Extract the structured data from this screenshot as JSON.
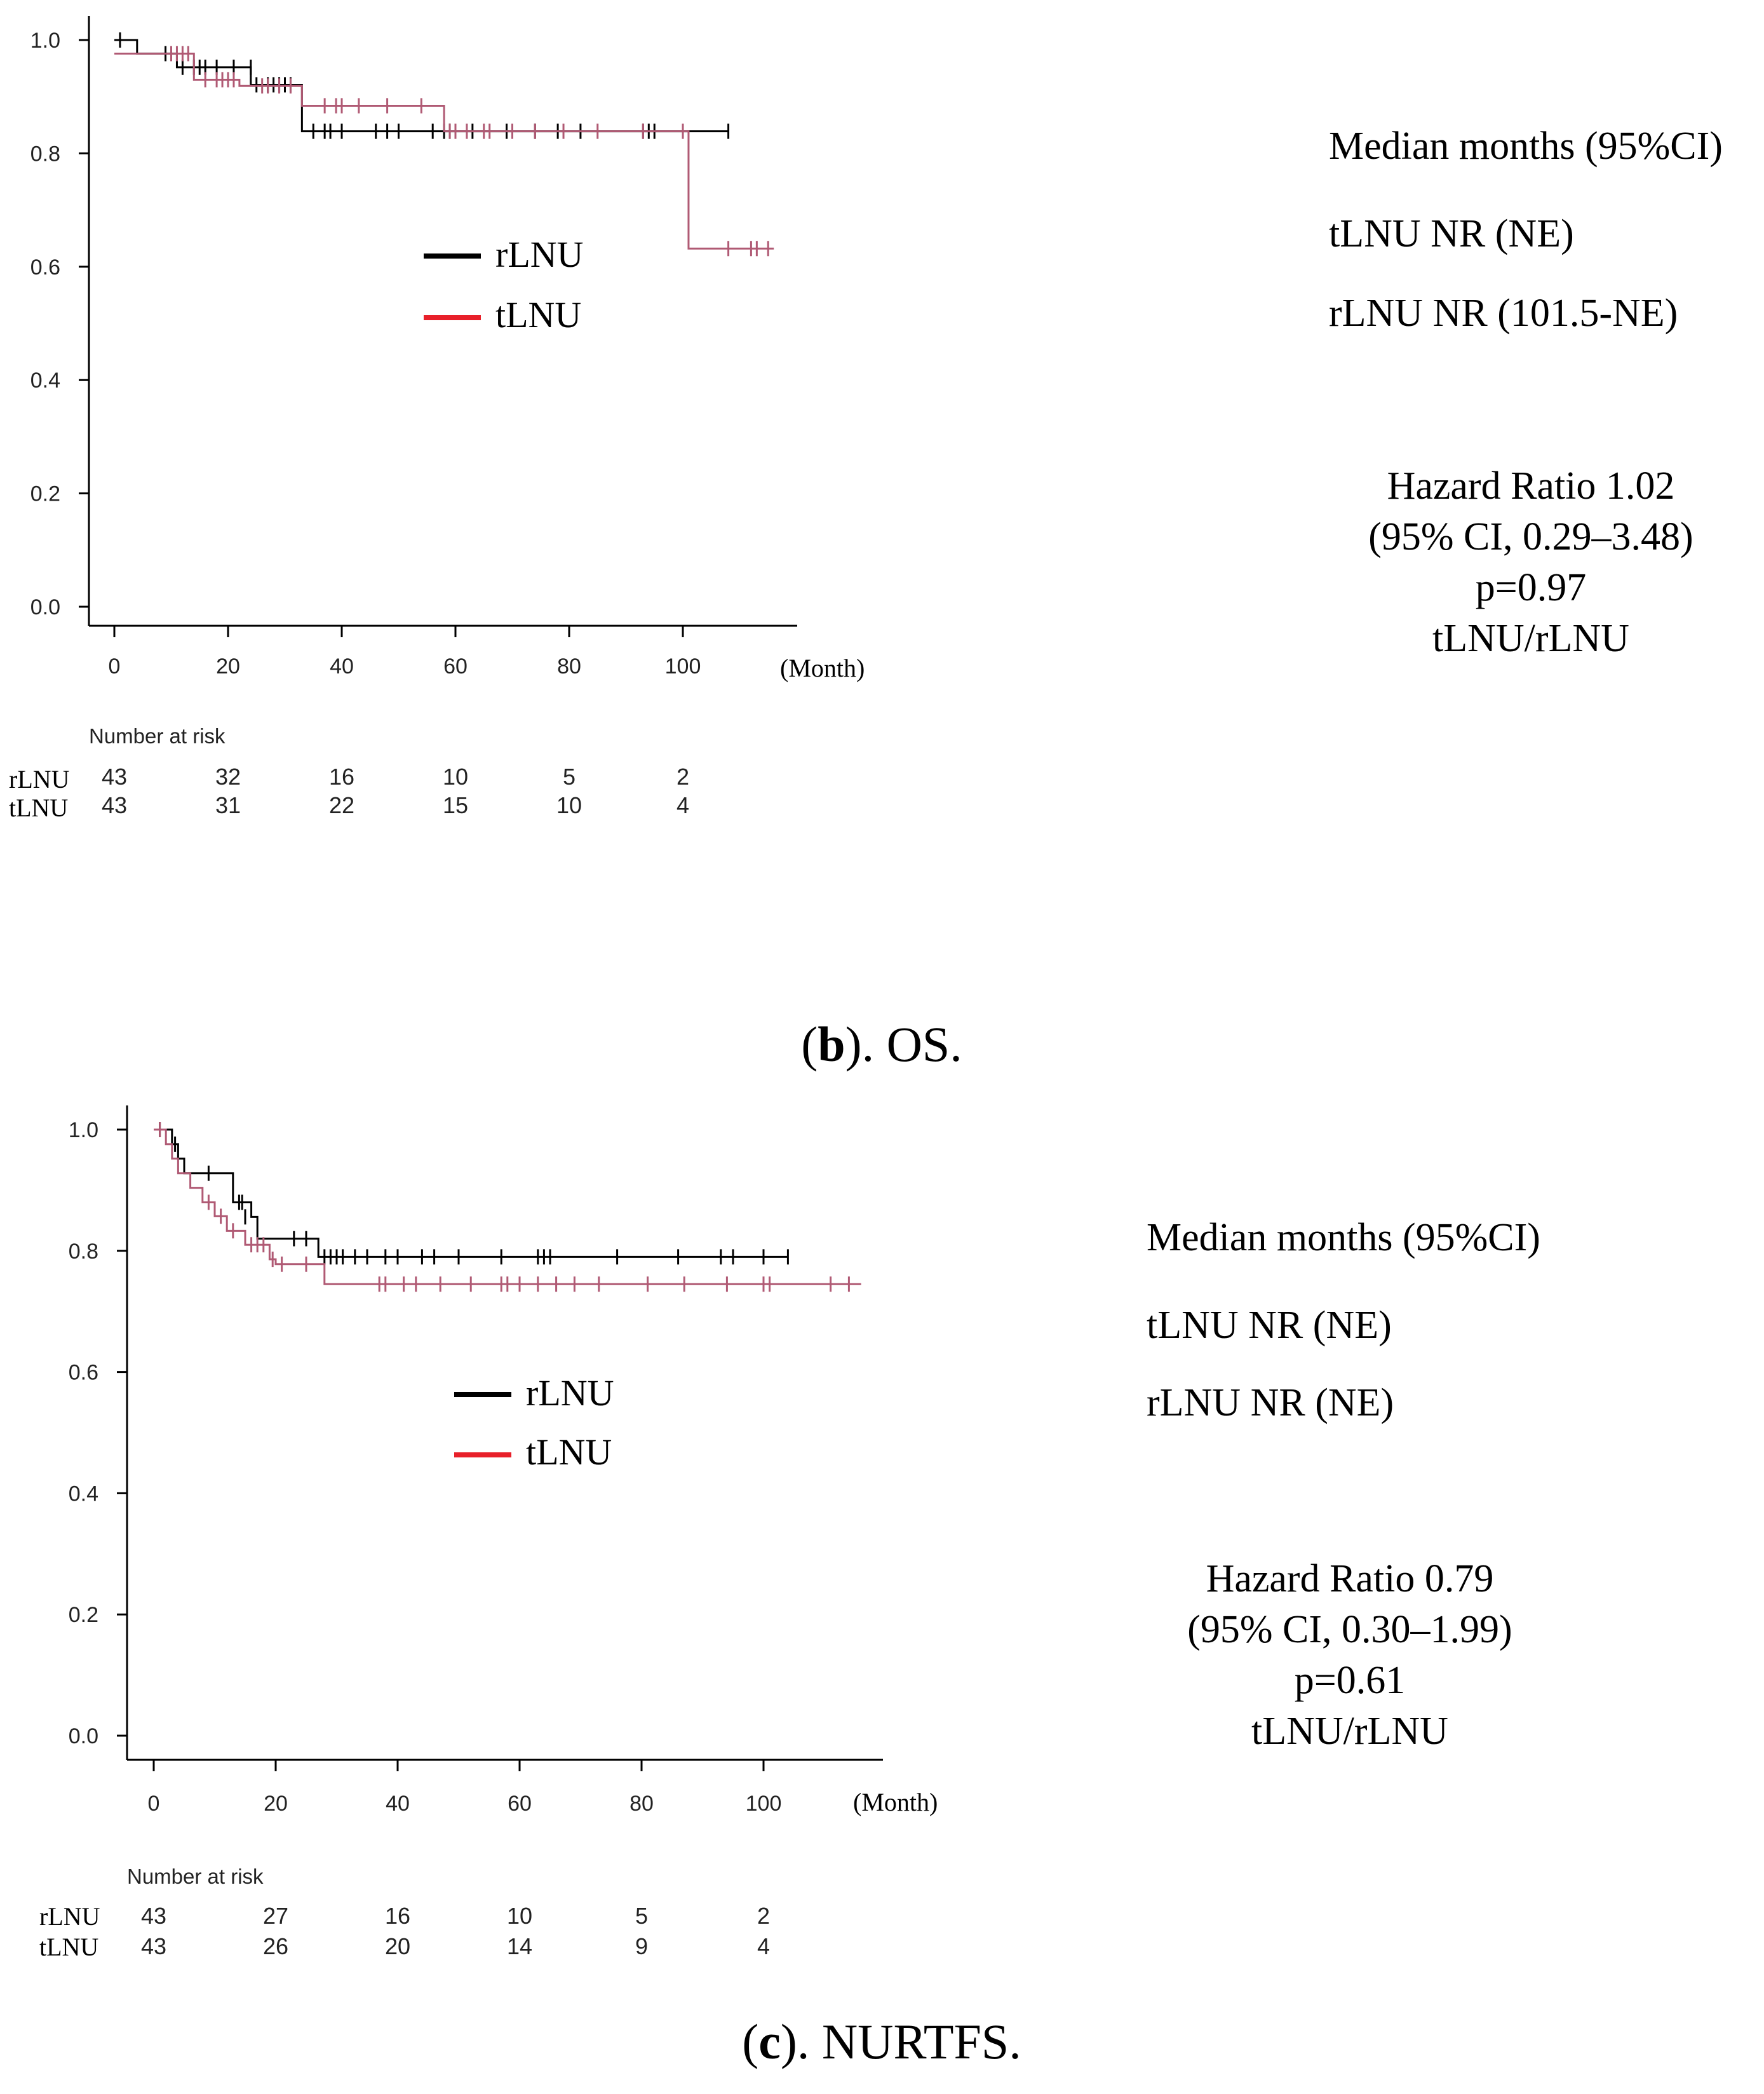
{
  "colors": {
    "rLNU": "#000000",
    "tLNU": "#b05a74",
    "legend_tLNU": "#e8202a",
    "axis": "#000000"
  },
  "chart_data": [
    {
      "id": "os",
      "type": "line",
      "subtype": "kaplan-meier",
      "caption": {
        "letter": "b",
        "text": "). OS.",
        "open": "("
      },
      "xlabel": "(Month)",
      "ylabel": "",
      "xlim": [
        0,
        120
      ],
      "ylim": [
        0,
        1
      ],
      "xticks": [
        "0",
        "20",
        "40",
        "60",
        "80",
        "100"
      ],
      "yticks": [
        "0.0",
        "0.2",
        "0.4",
        "0.6",
        "0.8",
        "1.0"
      ],
      "legend": [
        "rLNU",
        "tLNU"
      ],
      "series": [
        {
          "name": "rLNU",
          "steps": [
            [
              0,
              1.0
            ],
            [
              4,
              0.976
            ],
            [
              11,
              0.952
            ],
            [
              24,
              0.921
            ],
            [
              33,
              0.839
            ],
            [
              108,
              0.839
            ]
          ],
          "censors": [
            [
              1,
              1.0
            ],
            [
              9,
              0.976
            ],
            [
              12,
              0.952
            ],
            [
              14,
              0.952
            ],
            [
              15,
              0.952
            ],
            [
              16,
              0.952
            ],
            [
              18,
              0.952
            ],
            [
              21,
              0.952
            ],
            [
              24,
              0.952
            ],
            [
              25,
              0.921
            ],
            [
              27,
              0.921
            ],
            [
              28,
              0.921
            ],
            [
              29,
              0.921
            ],
            [
              30,
              0.921
            ],
            [
              31,
              0.921
            ],
            [
              35,
              0.839
            ],
            [
              37,
              0.839
            ],
            [
              38,
              0.839
            ],
            [
              40,
              0.839
            ],
            [
              46,
              0.839
            ],
            [
              48,
              0.839
            ],
            [
              50,
              0.839
            ],
            [
              56,
              0.839
            ],
            [
              58,
              0.839
            ],
            [
              59,
              0.839
            ],
            [
              63,
              0.839
            ],
            [
              69,
              0.839
            ],
            [
              74,
              0.839
            ],
            [
              78,
              0.839
            ],
            [
              82,
              0.839
            ],
            [
              93,
              0.839
            ],
            [
              94,
              0.839
            ],
            [
              95,
              0.839
            ],
            [
              108,
              0.839
            ]
          ]
        },
        {
          "name": "tLNU",
          "steps": [
            [
              0,
              0.976
            ],
            [
              14,
              0.93
            ],
            [
              22,
              0.919
            ],
            [
              33,
              0.884
            ],
            [
              58,
              0.839
            ],
            [
              101,
              0.632
            ],
            [
              116,
              0.632
            ]
          ],
          "censors": [
            [
              10,
              0.976
            ],
            [
              11,
              0.976
            ],
            [
              12,
              0.976
            ],
            [
              13,
              0.976
            ],
            [
              16,
              0.93
            ],
            [
              18,
              0.93
            ],
            [
              19,
              0.93
            ],
            [
              20,
              0.93
            ],
            [
              21,
              0.93
            ],
            [
              26,
              0.919
            ],
            [
              27,
              0.919
            ],
            [
              29,
              0.919
            ],
            [
              31,
              0.919
            ],
            [
              37,
              0.884
            ],
            [
              39,
              0.884
            ],
            [
              40,
              0.884
            ],
            [
              43,
              0.884
            ],
            [
              48,
              0.884
            ],
            [
              54,
              0.884
            ],
            [
              59,
              0.839
            ],
            [
              60,
              0.839
            ],
            [
              62,
              0.839
            ],
            [
              65,
              0.839
            ],
            [
              66,
              0.839
            ],
            [
              70,
              0.839
            ],
            [
              74,
              0.839
            ],
            [
              79,
              0.839
            ],
            [
              85,
              0.839
            ],
            [
              93,
              0.839
            ],
            [
              100,
              0.839
            ],
            [
              108,
              0.632
            ],
            [
              112,
              0.632
            ],
            [
              113,
              0.632
            ],
            [
              115,
              0.632
            ]
          ]
        }
      ],
      "risk_table": {
        "title": "Number at risk",
        "times": [
          0,
          20,
          40,
          60,
          80,
          100
        ],
        "rows": [
          {
            "label": "rLNU",
            "values": [
              "43",
              "32",
              "16",
              "10",
              "5",
              "2"
            ]
          },
          {
            "label": "tLNU",
            "values": [
              "43",
              "31",
              "22",
              "15",
              "10",
              "4"
            ]
          }
        ]
      },
      "stats": {
        "median_title": "Median months (95%CI)",
        "median_lines": [
          "tLNU NR (NE)",
          "rLNU NR (101.5-NE)"
        ],
        "hr_lines": [
          "Hazard Ratio 1.02",
          "(95% CI, 0.29–3.48)",
          "p=0.97",
          "tLNU/rLNU"
        ]
      }
    },
    {
      "id": "nurtfs",
      "type": "line",
      "subtype": "kaplan-meier",
      "caption": {
        "letter": "c",
        "text": "). NURTFS.",
        "open": "("
      },
      "xlabel": "(Month)",
      "ylabel": "",
      "xlim": [
        0,
        120
      ],
      "ylim": [
        0,
        1
      ],
      "xticks": [
        "0",
        "20",
        "40",
        "60",
        "80",
        "100"
      ],
      "yticks": [
        "0.0",
        "0.2",
        "0.4",
        "0.6",
        "0.8",
        "1.0"
      ],
      "legend": [
        "rLNU",
        "tLNU"
      ],
      "series": [
        {
          "name": "rLNU",
          "steps": [
            [
              0,
              1.0
            ],
            [
              3,
              0.976
            ],
            [
              4,
              0.952
            ],
            [
              5,
              0.928
            ],
            [
              13,
              0.88
            ],
            [
              16,
              0.856
            ],
            [
              17,
              0.82
            ],
            [
              27,
              0.79
            ],
            [
              104,
              0.79
            ]
          ],
          "censors": [
            [
              1,
              1.0
            ],
            [
              3.5,
              0.976
            ],
            [
              9,
              0.928
            ],
            [
              14,
              0.88
            ],
            [
              14.5,
              0.88
            ],
            [
              15,
              0.856
            ],
            [
              23,
              0.82
            ],
            [
              25,
              0.82
            ],
            [
              28,
              0.79
            ],
            [
              29,
              0.79
            ],
            [
              30,
              0.79
            ],
            [
              31,
              0.79
            ],
            [
              33,
              0.79
            ],
            [
              35,
              0.79
            ],
            [
              38,
              0.79
            ],
            [
              40,
              0.79
            ],
            [
              44,
              0.79
            ],
            [
              46,
              0.79
            ],
            [
              50,
              0.79
            ],
            [
              57,
              0.79
            ],
            [
              63,
              0.79
            ],
            [
              64,
              0.79
            ],
            [
              65,
              0.79
            ],
            [
              76,
              0.79
            ],
            [
              86,
              0.79
            ],
            [
              93,
              0.79
            ],
            [
              95,
              0.79
            ],
            [
              100,
              0.79
            ],
            [
              104,
              0.79
            ]
          ]
        },
        {
          "name": "tLNU",
          "steps": [
            [
              0,
              1.0
            ],
            [
              2,
              0.976
            ],
            [
              3,
              0.952
            ],
            [
              4,
              0.928
            ],
            [
              6,
              0.904
            ],
            [
              8,
              0.88
            ],
            [
              10,
              0.857
            ],
            [
              12,
              0.833
            ],
            [
              15,
              0.81
            ],
            [
              19,
              0.786
            ],
            [
              20,
              0.778
            ],
            [
              28,
              0.745
            ],
            [
              116,
              0.745
            ]
          ],
          "censors": [
            [
              1,
              1.0
            ],
            [
              9,
              0.88
            ],
            [
              11,
              0.857
            ],
            [
              13,
              0.833
            ],
            [
              16,
              0.81
            ],
            [
              17,
              0.81
            ],
            [
              18,
              0.81
            ],
            [
              19.5,
              0.786
            ],
            [
              21,
              0.778
            ],
            [
              25,
              0.778
            ],
            [
              37,
              0.745
            ],
            [
              38,
              0.745
            ],
            [
              41,
              0.745
            ],
            [
              43,
              0.745
            ],
            [
              47,
              0.745
            ],
            [
              52,
              0.745
            ],
            [
              57,
              0.745
            ],
            [
              58,
              0.745
            ],
            [
              60,
              0.745
            ],
            [
              63,
              0.745
            ],
            [
              66,
              0.745
            ],
            [
              69,
              0.745
            ],
            [
              73,
              0.745
            ],
            [
              81,
              0.745
            ],
            [
              87,
              0.745
            ],
            [
              94,
              0.745
            ],
            [
              100,
              0.745
            ],
            [
              101,
              0.745
            ],
            [
              111,
              0.745
            ],
            [
              114,
              0.745
            ]
          ]
        }
      ],
      "risk_table": {
        "title": "Number at risk",
        "times": [
          0,
          20,
          40,
          60,
          80,
          100
        ],
        "rows": [
          {
            "label": "rLNU",
            "values": [
              "43",
              "27",
              "16",
              "10",
              "5",
              "2"
            ]
          },
          {
            "label": "tLNU",
            "values": [
              "43",
              "26",
              "20",
              "14",
              "9",
              "4"
            ]
          }
        ]
      },
      "stats": {
        "median_title": "Median months (95%CI)",
        "median_lines": [
          "tLNU NR (NE)",
          "rLNU NR (NE)"
        ],
        "hr_lines": [
          "Hazard Ratio 0.79",
          "(95% CI, 0.30–1.99)",
          "p=0.61",
          "tLNU/rLNU"
        ]
      }
    }
  ]
}
